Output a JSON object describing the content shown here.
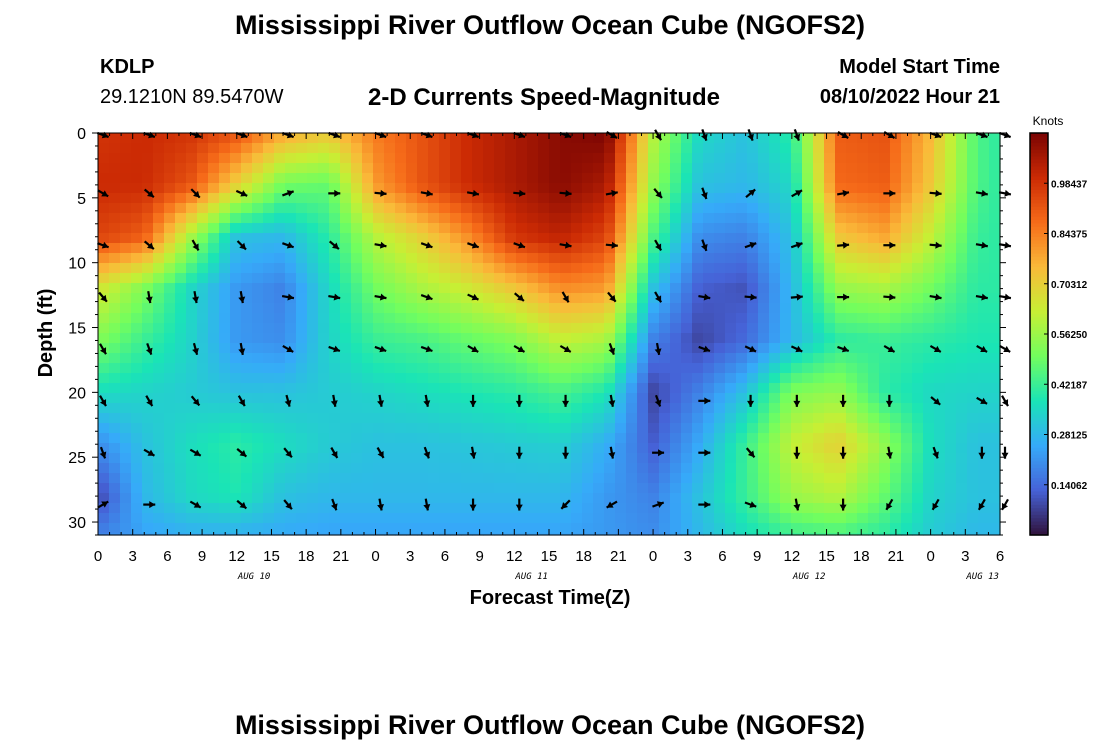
{
  "header": {
    "title": "Mississippi River Outflow Ocean Cube (NGOFS2)",
    "station_id": "KDLP",
    "station_coords": "29.1210N  89.5470W",
    "subtitle": "2-D Currents Speed-Magnitude",
    "model_start_label": "Model Start Time",
    "model_start_value": "08/10/2022 Hour 21"
  },
  "footer": {
    "title": "Mississippi River Outflow Ocean Cube (NGOFS2)"
  },
  "colors": {
    "colormap": [
      "#30123b",
      "#4662d7",
      "#36aaf9",
      "#1ae4b6",
      "#72fe5e",
      "#c7ef34",
      "#faba39",
      "#f66b19",
      "#cb2a04",
      "#7a0403"
    ],
    "arrow": "#000000",
    "axis": "#000000"
  },
  "chart_data": {
    "type": "heatmap",
    "title": "2-D Currents Speed-Magnitude",
    "xlabel": "Forecast Time(Z)",
    "ylabel": "Depth (ft)",
    "x_tick_labels": [
      "0",
      "3",
      "6",
      "9",
      "12",
      "15",
      "18",
      "21",
      "0",
      "3",
      "6",
      "9",
      "12",
      "15",
      "18",
      "21",
      "0",
      "3",
      "6",
      "9",
      "12",
      "15",
      "18",
      "21",
      "0",
      "3",
      "6"
    ],
    "x_date_labels": [
      {
        "label": "AUG 10",
        "tick_index": 4.5
      },
      {
        "label": "AUG 11",
        "tick_index": 12.5
      },
      {
        "label": "AUG 12",
        "tick_index": 20.5
      },
      {
        "label": "AUG 13",
        "tick_index": 25.5
      }
    ],
    "ylim": [
      0,
      31
    ],
    "y_ticks": [
      0,
      5,
      10,
      15,
      20,
      25,
      30
    ],
    "colorbar": {
      "label": "Knots",
      "vmin": 0.0,
      "vmax": 1.125,
      "ticks": [
        "0.98437",
        "0.84375",
        "0.70312",
        "0.56250",
        "0.42187",
        "0.28125",
        "0.14062"
      ]
    },
    "depths_ft": [
      0,
      4,
      8,
      12,
      16,
      20,
      24,
      28,
      31
    ],
    "time_columns": [
      "Aug10 00Z",
      "Aug10 04Z",
      "Aug10 08Z",
      "Aug10 12Z",
      "Aug10 16Z",
      "Aug10 20Z",
      "Aug11 00Z",
      "Aug11 04Z",
      "Aug11 08Z",
      "Aug11 12Z",
      "Aug11 16Z",
      "Aug11 20Z",
      "Aug12 00Z",
      "Aug12 04Z",
      "Aug12 08Z",
      "Aug12 12Z",
      "Aug12 16Z",
      "Aug12 20Z",
      "Aug13 00Z",
      "Aug13 04Z",
      "Aug13 06Z"
    ],
    "speed_knots": [
      [
        0.98,
        1.0,
        0.98,
        0.92,
        0.78,
        0.72,
        0.85,
        0.92,
        1.0,
        1.05,
        1.1,
        1.12,
        0.6,
        0.35,
        0.3,
        0.4,
        0.9,
        0.92,
        0.75,
        0.45,
        0.4
      ],
      [
        1.0,
        1.0,
        0.92,
        0.7,
        0.5,
        0.48,
        0.8,
        0.92,
        1.0,
        1.05,
        1.1,
        1.05,
        0.55,
        0.3,
        0.28,
        0.35,
        0.88,
        0.9,
        0.72,
        0.45,
        0.4
      ],
      [
        0.95,
        0.9,
        0.58,
        0.3,
        0.28,
        0.4,
        0.6,
        0.7,
        0.82,
        0.98,
        1.02,
        0.95,
        0.45,
        0.2,
        0.18,
        0.3,
        0.72,
        0.78,
        0.62,
        0.42,
        0.4
      ],
      [
        0.65,
        0.52,
        0.35,
        0.22,
        0.18,
        0.35,
        0.5,
        0.58,
        0.64,
        0.72,
        0.82,
        0.8,
        0.3,
        0.12,
        0.1,
        0.28,
        0.55,
        0.58,
        0.5,
        0.4,
        0.4
      ],
      [
        0.52,
        0.42,
        0.34,
        0.22,
        0.2,
        0.34,
        0.42,
        0.44,
        0.48,
        0.52,
        0.62,
        0.58,
        0.18,
        0.08,
        0.14,
        0.28,
        0.4,
        0.42,
        0.4,
        0.38,
        0.38
      ],
      [
        0.36,
        0.34,
        0.32,
        0.3,
        0.3,
        0.32,
        0.34,
        0.36,
        0.38,
        0.4,
        0.44,
        0.38,
        0.08,
        0.18,
        0.3,
        0.52,
        0.55,
        0.4,
        0.35,
        0.34,
        0.34
      ],
      [
        0.2,
        0.3,
        0.36,
        0.4,
        0.36,
        0.32,
        0.3,
        0.3,
        0.31,
        0.32,
        0.33,
        0.26,
        0.12,
        0.25,
        0.42,
        0.62,
        0.7,
        0.55,
        0.36,
        0.3,
        0.3
      ],
      [
        0.08,
        0.28,
        0.35,
        0.38,
        0.3,
        0.28,
        0.28,
        0.28,
        0.28,
        0.28,
        0.28,
        0.22,
        0.18,
        0.3,
        0.42,
        0.56,
        0.6,
        0.48,
        0.34,
        0.3,
        0.3
      ],
      [
        0.18,
        0.24,
        0.26,
        0.26,
        0.25,
        0.24,
        0.24,
        0.24,
        0.24,
        0.24,
        0.24,
        0.22,
        0.2,
        0.28,
        0.36,
        0.42,
        0.44,
        0.4,
        0.32,
        0.28,
        0.28
      ]
    ],
    "vector_depths_ft": [
      0,
      4.5,
      8.5,
      12.5,
      16.5,
      20.5,
      24.5,
      28.5
    ],
    "vector_time_columns": [
      "Aug10 00Z",
      "Aug10 04Z",
      "Aug10 08Z",
      "Aug10 12Z",
      "Aug10 16Z",
      "Aug10 20Z",
      "Aug11 00Z",
      "Aug11 04Z",
      "Aug11 08Z",
      "Aug11 12Z",
      "Aug11 16Z",
      "Aug11 20Z",
      "Aug12 00Z",
      "Aug12 04Z",
      "Aug12 08Z",
      "Aug12 12Z",
      "Aug12 16Z",
      "Aug12 20Z",
      "Aug13 00Z",
      "Aug13 04Z",
      "Aug13 06Z"
    ],
    "current_direction_deg": [
      [
        110,
        110,
        110,
        110,
        110,
        110,
        110,
        110,
        110,
        110,
        110,
        120,
        150,
        160,
        160,
        160,
        120,
        120,
        110,
        110,
        110
      ],
      [
        120,
        130,
        135,
        115,
        70,
        90,
        95,
        100,
        100,
        95,
        95,
        80,
        140,
        160,
        50,
        60,
        80,
        90,
        95,
        100,
        100
      ],
      [
        110,
        130,
        150,
        135,
        110,
        130,
        100,
        110,
        110,
        110,
        100,
        95,
        150,
        160,
        70,
        70,
        85,
        90,
        95,
        100,
        100
      ],
      [
        140,
        170,
        170,
        170,
        100,
        100,
        100,
        110,
        115,
        130,
        150,
        140,
        150,
        100,
        95,
        85,
        90,
        95,
        100,
        100,
        100
      ],
      [
        150,
        160,
        165,
        170,
        120,
        110,
        110,
        110,
        120,
        120,
        120,
        160,
        170,
        110,
        115,
        115,
        110,
        120,
        120,
        120,
        120
      ],
      [
        150,
        150,
        140,
        150,
        165,
        170,
        170,
        170,
        180,
        180,
        180,
        170,
        160,
        90,
        180,
        180,
        180,
        180,
        130,
        120,
        150
      ],
      [
        160,
        120,
        120,
        130,
        140,
        150,
        150,
        160,
        170,
        180,
        180,
        170,
        90,
        90,
        140,
        180,
        180,
        170,
        160,
        180,
        180
      ],
      [
        60,
        90,
        120,
        130,
        140,
        160,
        170,
        170,
        180,
        180,
        225,
        240,
        70,
        90,
        110,
        170,
        180,
        210,
        210,
        210,
        210
      ]
    ]
  }
}
